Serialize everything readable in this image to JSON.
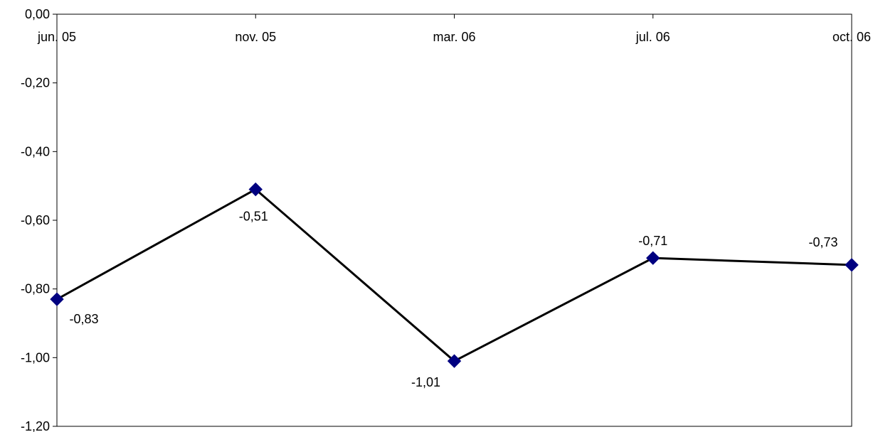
{
  "chart_data": {
    "type": "line",
    "title": "",
    "xlabel": "",
    "ylabel": "",
    "categories": [
      "jun. 05",
      "nov. 05",
      "mar. 06",
      "jul. 06",
      "oct. 06"
    ],
    "series": [
      {
        "values": [
          -0.83,
          -0.51,
          -1.01,
          -0.71,
          -0.73
        ],
        "data_labels": [
          "-0,83",
          "-0,51",
          "-1,01",
          "-0,71",
          "-0,73"
        ],
        "line_color": "#000000",
        "marker_color": "#000080",
        "marker": "diamond"
      }
    ],
    "ylim": [
      -1.2,
      0
    ],
    "y_ticks": [
      0,
      -0.2,
      -0.4,
      -0.6,
      -0.8,
      -1.0,
      -1.2
    ],
    "y_tick_labels": [
      "0,00",
      "-0,20",
      "-0,40",
      "-0,60",
      "-0,80",
      "-1,00",
      "-1,20"
    ],
    "x_axis_position": "top",
    "grid": false,
    "legend": "none"
  }
}
